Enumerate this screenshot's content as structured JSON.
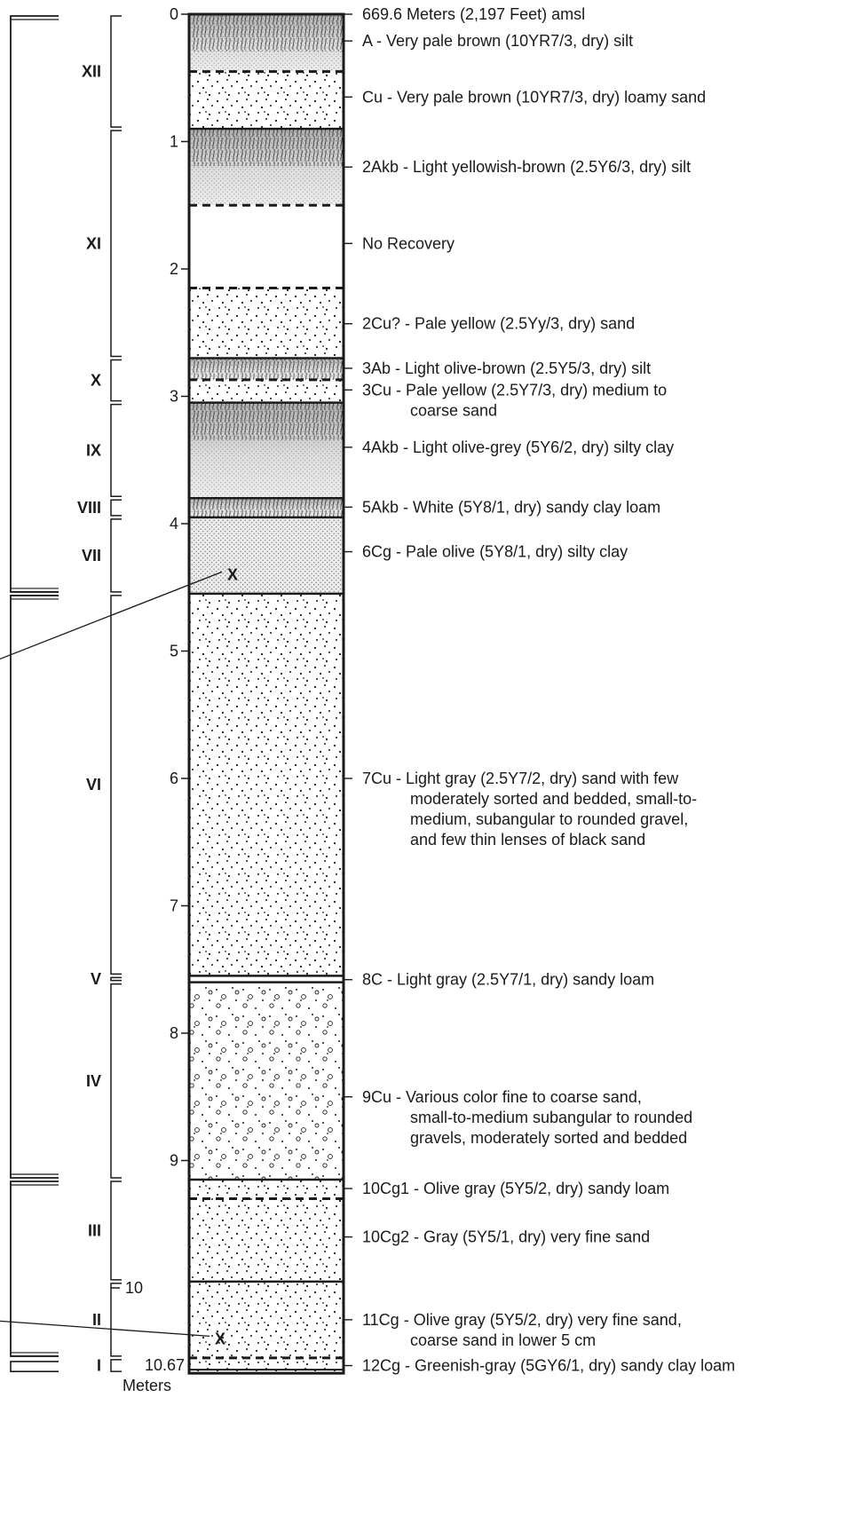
{
  "depth_axis": {
    "ticks": [
      "0",
      "1",
      "2",
      "3",
      "4",
      "5",
      "6",
      "7",
      "8",
      "9"
    ],
    "tick10": "10",
    "bottom_value": "10.67",
    "unit": "Meters",
    "max_depth": 10.67
  },
  "units": [
    {
      "label": "XII",
      "top": 0.0,
      "bottom": 0.9
    },
    {
      "label": "XI",
      "top": 0.9,
      "bottom": 2.7
    },
    {
      "label": "X",
      "top": 2.7,
      "bottom": 3.05
    },
    {
      "label": "IX",
      "top": 3.05,
      "bottom": 3.8
    },
    {
      "label": "VIII",
      "top": 3.8,
      "bottom": 3.95
    },
    {
      "label": "VII",
      "top": 3.95,
      "bottom": 4.55
    },
    {
      "label": "VI",
      "top": 4.55,
      "bottom": 7.55
    },
    {
      "label": "V",
      "top": 7.55,
      "bottom": 7.6
    },
    {
      "label": "IV",
      "top": 7.6,
      "bottom": 9.15
    },
    {
      "label": "III",
      "top": 9.15,
      "bottom": 9.95
    },
    {
      "label": "II",
      "top": 9.95,
      "bottom": 10.55
    },
    {
      "label": "I",
      "top": 10.55,
      "bottom": 10.67
    }
  ],
  "major_groups": [
    {
      "top": 0.0,
      "bottom": 4.55
    },
    {
      "top": 4.55,
      "bottom": 9.15
    },
    {
      "top": 9.15,
      "bottom": 10.55
    }
  ],
  "layers": [
    {
      "top": 0.0,
      "bottom": 0.45,
      "pattern": "silt",
      "border": "solid"
    },
    {
      "top": 0.45,
      "bottom": 0.9,
      "pattern": "sand",
      "border": "dashed"
    },
    {
      "top": 0.9,
      "bottom": 1.5,
      "pattern": "silt",
      "border": "solid"
    },
    {
      "top": 1.5,
      "bottom": 2.15,
      "pattern": "none",
      "border": "dashed"
    },
    {
      "top": 2.15,
      "bottom": 2.7,
      "pattern": "sand",
      "border": "dashed"
    },
    {
      "top": 2.7,
      "bottom": 2.87,
      "pattern": "silt",
      "border": "solid"
    },
    {
      "top": 2.87,
      "bottom": 3.05,
      "pattern": "sand",
      "border": "dashed"
    },
    {
      "top": 3.05,
      "bottom": 3.8,
      "pattern": "silt",
      "border": "solid"
    },
    {
      "top": 3.8,
      "bottom": 3.95,
      "pattern": "silt",
      "border": "solid"
    },
    {
      "top": 3.95,
      "bottom": 4.55,
      "pattern": "fine",
      "border": "solid"
    },
    {
      "top": 4.55,
      "bottom": 7.55,
      "pattern": "sand",
      "border": "solid"
    },
    {
      "top": 7.55,
      "bottom": 7.6,
      "pattern": "none",
      "border": "solid"
    },
    {
      "top": 7.6,
      "bottom": 9.15,
      "pattern": "gravel",
      "border": "solid"
    },
    {
      "top": 9.15,
      "bottom": 9.3,
      "pattern": "sand",
      "border": "solid"
    },
    {
      "top": 9.3,
      "bottom": 9.95,
      "pattern": "sand",
      "border": "dashed"
    },
    {
      "top": 9.95,
      "bottom": 10.55,
      "pattern": "sand",
      "border": "solid"
    },
    {
      "top": 10.55,
      "bottom": 10.67,
      "pattern": "sand",
      "border": "dashed"
    }
  ],
  "descriptions": [
    {
      "depth": 0.0,
      "lines": [
        "669.6 Meters (2,197 Feet) amsl"
      ]
    },
    {
      "depth": 0.21,
      "lines": [
        "A - Very pale brown (10YR7/3, dry) silt"
      ]
    },
    {
      "depth": 0.65,
      "lines": [
        "Cu - Very pale brown (10YR7/3, dry) loamy sand"
      ]
    },
    {
      "depth": 1.2,
      "lines": [
        "2Akb - Light yellowish-brown (2.5Y6/3, dry) silt"
      ]
    },
    {
      "depth": 1.8,
      "lines": [
        "No Recovery"
      ]
    },
    {
      "depth": 2.43,
      "lines": [
        "2Cu? - Pale yellow (2.5Yy/3, dry) sand"
      ]
    },
    {
      "depth": 2.78,
      "lines": [
        "3Ab - Light olive-brown (2.5Y5/3, dry) silt"
      ]
    },
    {
      "depth": 2.95,
      "lines": [
        "3Cu - Pale yellow (2.5Y7/3, dry) medium to",
        "coarse sand"
      ]
    },
    {
      "depth": 3.4,
      "lines": [
        "4Akb - Light olive-grey (5Y6/2, dry) silty clay"
      ]
    },
    {
      "depth": 3.87,
      "lines": [
        "5Akb - White (5Y8/1, dry) sandy clay loam"
      ]
    },
    {
      "depth": 4.22,
      "lines": [
        "6Cg - Pale olive (5Y8/1, dry) silty clay"
      ]
    },
    {
      "depth": 6.0,
      "lines": [
        "7Cu - Light gray (2.5Y7/2, dry) sand with few",
        "moderately sorted and bedded, small-to-",
        "medium, subangular to rounded gravel,",
        "and few thin lenses of black sand"
      ]
    },
    {
      "depth": 7.58,
      "lines": [
        "8C - Light gray (2.5Y7/1, dry) sandy loam"
      ]
    },
    {
      "depth": 8.5,
      "lines": [
        "9Cu - Various color fine to coarse sand,",
        "small-to-medium subangular to rounded",
        "gravels, moderately sorted and bedded"
      ]
    },
    {
      "depth": 9.22,
      "lines": [
        "10Cg1 - Olive gray (5Y5/2, dry) sandy loam"
      ]
    },
    {
      "depth": 9.6,
      "lines": [
        "10Cg2 - Gray (5Y5/1, dry) very fine sand"
      ]
    },
    {
      "depth": 10.25,
      "lines": [
        "11Cg - Olive gray (5Y5/2, dry) very fine sand,",
        "coarse sand in lower 5 cm"
      ]
    },
    {
      "depth": 10.61,
      "lines": [
        "12Cg - Greenish-gray (5GY6/1, dry) sandy clay loam"
      ]
    }
  ],
  "sample_marks": [
    {
      "label": "X",
      "depth": 4.4
    },
    {
      "label": "X",
      "depth": 10.4
    }
  ],
  "colors": {
    "ink": "#1a1a1a",
    "silt_dark": "#707070",
    "silt_light": "#dcdcdc",
    "fine_fill": "#e4e4e4"
  }
}
